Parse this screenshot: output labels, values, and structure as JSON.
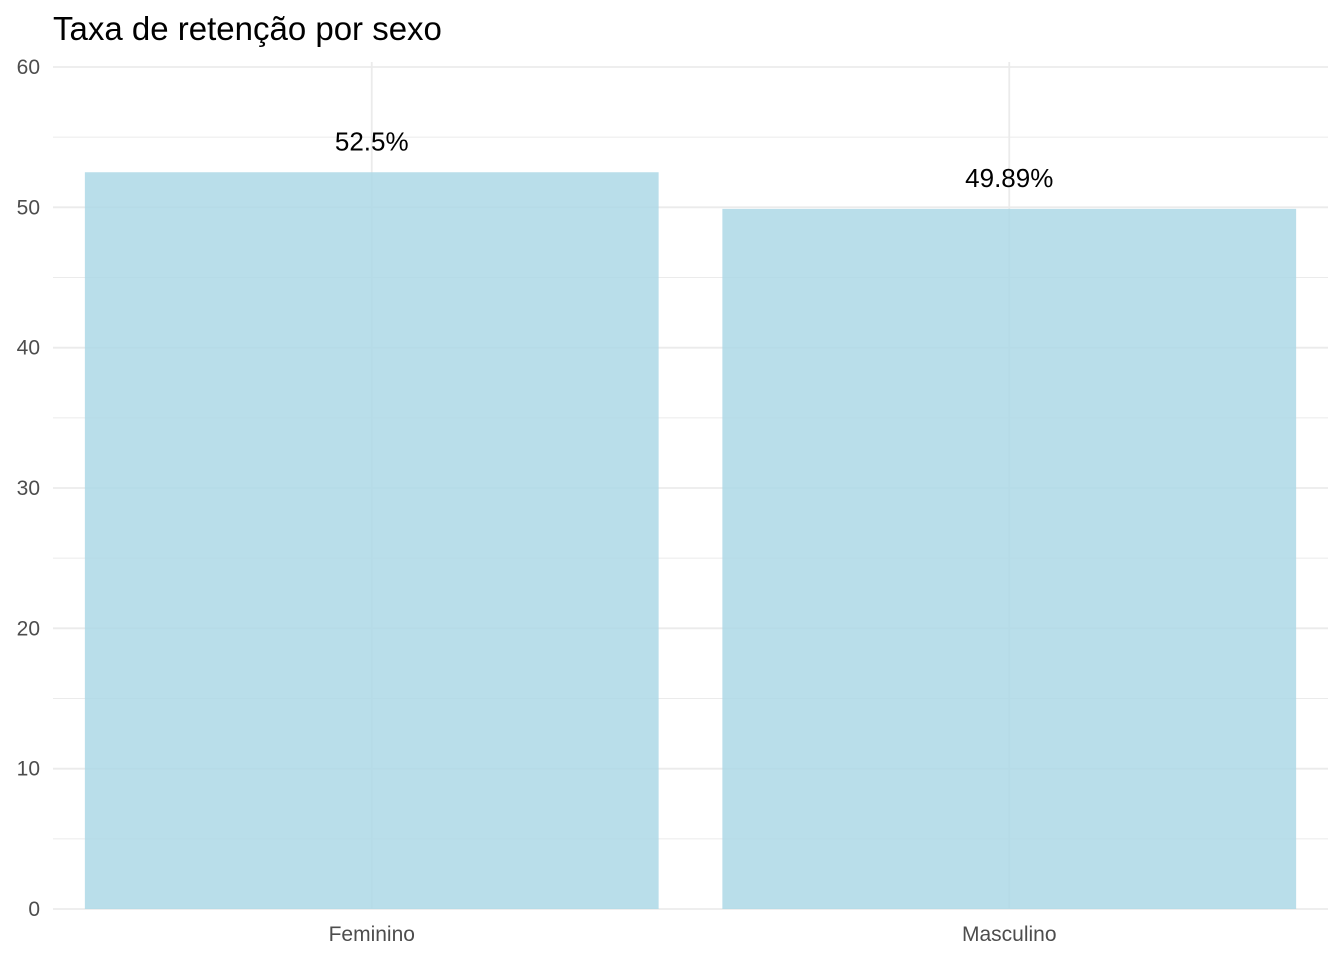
{
  "chart_data": {
    "type": "bar",
    "title": "Taxa de retenção por sexo",
    "xlabel": "",
    "ylabel": "",
    "categories": [
      "Feminino",
      "Masculino"
    ],
    "values": [
      52.5,
      49.89
    ],
    "data_labels": [
      "52.5%",
      "49.89%"
    ],
    "ylim": [
      0,
      60
    ],
    "yticks": [
      0,
      10,
      20,
      30,
      40,
      50,
      60
    ],
    "grid": true,
    "legend": "none",
    "colors": {
      "bar": "#ADD8E6",
      "grid": "#EBEBEB",
      "tick_text": "#4D4D4D",
      "label_text": "#000000"
    }
  }
}
